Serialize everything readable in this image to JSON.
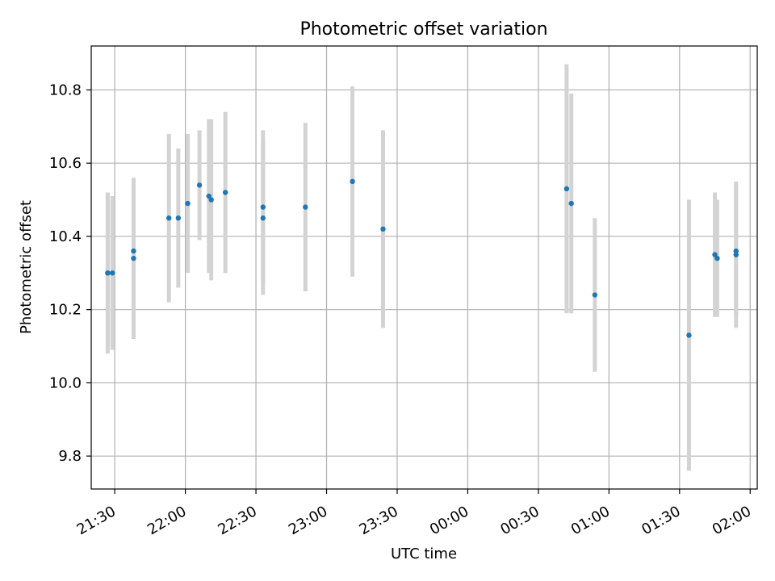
{
  "chart_data": {
    "type": "scatter",
    "title": "Photometric offset variation",
    "xlabel": "UTC time",
    "ylabel": "Photometric offset",
    "x_axis": {
      "kind": "time",
      "range": [
        "21:20",
        "02:03"
      ],
      "ticks": [
        "21:30",
        "22:00",
        "22:30",
        "23:00",
        "23:30",
        "00:00",
        "00:30",
        "01:00",
        "01:30",
        "02:00"
      ]
    },
    "y_axis": {
      "range": [
        9.71,
        10.92
      ],
      "ticks": [
        "9.8",
        "10.0",
        "10.2",
        "10.4",
        "10.6",
        "10.8"
      ]
    },
    "grid": true,
    "colors": {
      "point": "#1f77b4",
      "errorbar": "#d3d3d3",
      "grid": "#b0b0b0"
    },
    "points": [
      {
        "t": "21:27",
        "y": 10.3,
        "err": 0.22
      },
      {
        "t": "21:27",
        "y": 10.3,
        "err": 0.22
      },
      {
        "t": "21:29",
        "y": 10.3,
        "err": 0.21
      },
      {
        "t": "21:38",
        "y": 10.36,
        "err": 0.2
      },
      {
        "t": "21:38",
        "y": 10.34,
        "err": 0.22
      },
      {
        "t": "21:53",
        "y": 10.45,
        "err": 0.23
      },
      {
        "t": "21:57",
        "y": 10.45,
        "err": 0.19
      },
      {
        "t": "22:01",
        "y": 10.49,
        "err": 0.19
      },
      {
        "t": "22:06",
        "y": 10.54,
        "err": 0.15
      },
      {
        "t": "22:10",
        "y": 10.51,
        "err": 0.21
      },
      {
        "t": "22:11",
        "y": 10.5,
        "err": 0.22
      },
      {
        "t": "22:17",
        "y": 10.52,
        "err": 0.22
      },
      {
        "t": "22:33",
        "y": 10.45,
        "err": 0.21
      },
      {
        "t": "22:33",
        "y": 10.48,
        "err": 0.21
      },
      {
        "t": "22:51",
        "y": 10.48,
        "err": 0.23
      },
      {
        "t": "23:11",
        "y": 10.55,
        "err": 0.26
      },
      {
        "t": "23:24",
        "y": 10.42,
        "err": 0.27
      },
      {
        "t": "00:42",
        "y": 10.53,
        "err": 0.34
      },
      {
        "t": "00:44",
        "y": 10.49,
        "err": 0.3
      },
      {
        "t": "00:54",
        "y": 10.24,
        "err": 0.21
      },
      {
        "t": "01:34",
        "y": 10.13,
        "err": 0.37
      },
      {
        "t": "01:45",
        "y": 10.35,
        "err": 0.17
      },
      {
        "t": "01:46",
        "y": 10.34,
        "err": 0.16
      },
      {
        "t": "01:54",
        "y": 10.36,
        "err": 0.18
      },
      {
        "t": "01:54",
        "y": 10.35,
        "err": 0.2
      }
    ]
  }
}
